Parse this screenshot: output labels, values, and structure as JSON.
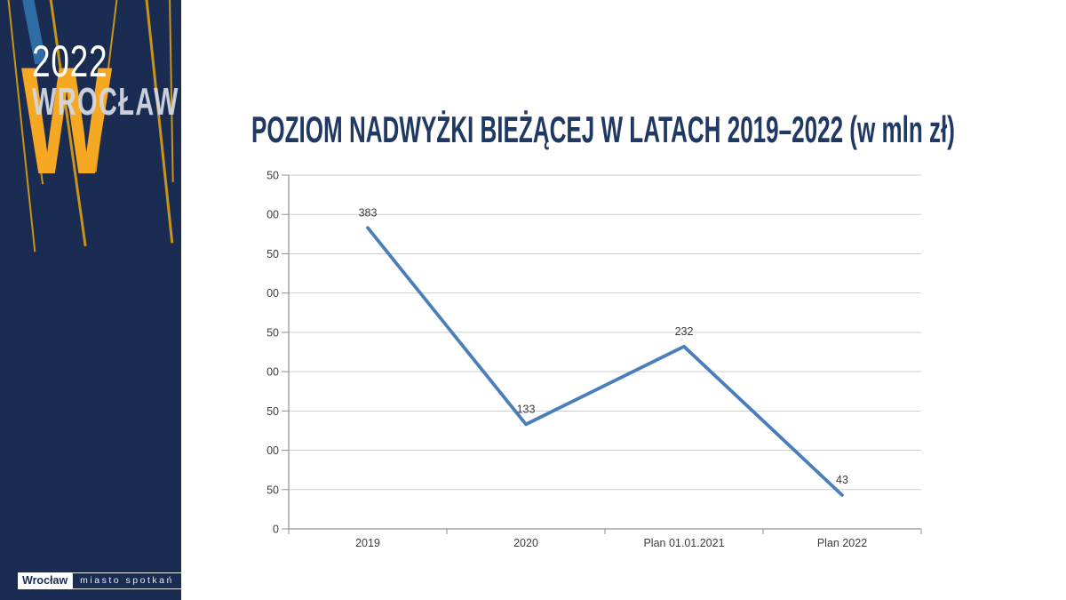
{
  "sidebar": {
    "year": "2022",
    "city": "WROCŁAW",
    "w_letter": "W",
    "badge": {
      "left": "Wrocław",
      "right": "miasto spotkań"
    },
    "colors": {
      "background": "#1A2C52",
      "yellow": "#F7A823",
      "blue_band": "#2E6DA4"
    }
  },
  "header": {
    "title": "POZIOM NADWYŻKI BIEŻĄCEJ W LATACH 2019–2022 (w mln zł)",
    "color": "#1F3864"
  },
  "chart_data": {
    "type": "line",
    "title": "",
    "xlabel": "",
    "ylabel": "",
    "categories": [
      "2019",
      "2020",
      "Plan 01.01.2021",
      "Plan 2022"
    ],
    "values": [
      383,
      133,
      232,
      43
    ],
    "data_labels": [
      "383",
      "133",
      "232",
      "43"
    ],
    "ylim": [
      0,
      450
    ],
    "ytick_step": 50,
    "grid": true,
    "legend": "none",
    "line_color": "#4A7EBB",
    "grid_color": "#CDCDCD",
    "axis_color": "#909090",
    "label_color": "#3C3C3C"
  }
}
